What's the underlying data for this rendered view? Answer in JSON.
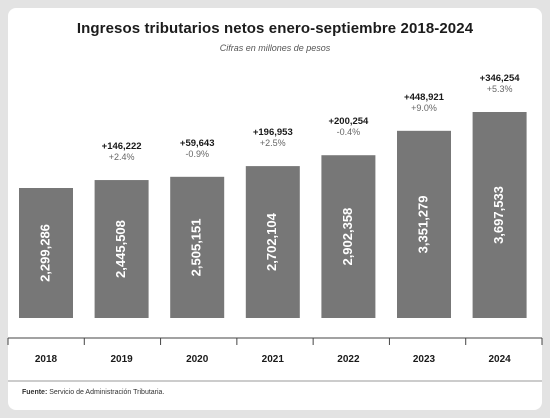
{
  "chart_data": {
    "type": "bar",
    "title": "Ingresos tributarios netos enero-septiembre 2018-2024",
    "subtitle": "Cifras en millones de pesos",
    "categories": [
      "2018",
      "2019",
      "2020",
      "2021",
      "2022",
      "2023",
      "2024"
    ],
    "values": [
      2299286,
      2445508,
      2505151,
      2702104,
      2902358,
      3351279,
      3697533
    ],
    "value_labels": [
      "2,299,286",
      "2,445,508",
      "2,505,151",
      "2,702,104",
      "2,902,358",
      "3,351,279",
      "3,697,533"
    ],
    "changes": [
      "",
      "+146,222",
      "+59,643",
      "+196,953",
      "+200,254",
      "+448,921",
      "+346,254"
    ],
    "pct_changes": [
      "",
      "+2.4%",
      "-0.9%",
      "+2.5%",
      "-0.4%",
      "+9.0%",
      "+5.3%"
    ],
    "bar_color": "#777777",
    "legend": false,
    "grid": false
  },
  "source": {
    "label": "Fuente:",
    "text": "Servicio de Administración Tributaria."
  }
}
